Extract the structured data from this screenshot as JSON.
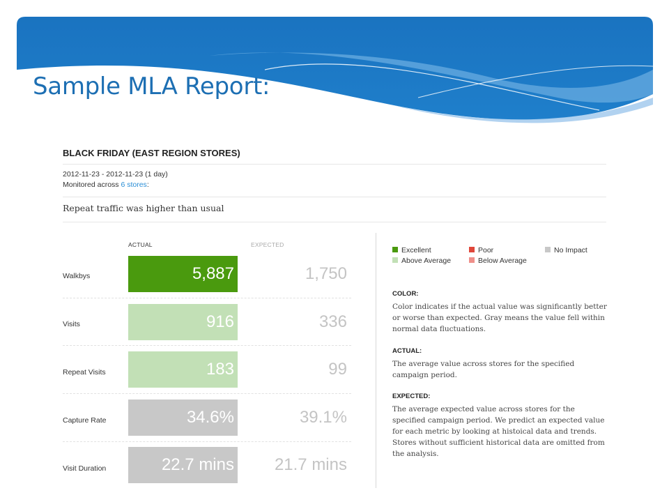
{
  "slide": {
    "title": "Sample MLA Report:",
    "colors": {
      "banner_dark": "#1a73c0",
      "banner_light": "#6aaee0",
      "title": "#1d6fb3"
    }
  },
  "report": {
    "title": "BLACK FRIDAY (EAST REGION STORES)",
    "date_range": "2012-11-23 - 2012-11-23 (1 day)",
    "monitored_prefix": "Monitored across ",
    "monitored_link": "6 stores",
    "monitored_suffix": ":",
    "headline": "Repeat traffic was higher than usual",
    "column_actual": "ACTUAL",
    "column_expected": "EXPECTED",
    "metrics": [
      {
        "label": "Walkbys",
        "actual": "5,887",
        "expected": "1,750",
        "status": "Excellent"
      },
      {
        "label": "Visits",
        "actual": "916",
        "expected": "336",
        "status": "Above Average"
      },
      {
        "label": "Repeat Visits",
        "actual": "183",
        "expected": "99",
        "status": "Above Average"
      },
      {
        "label": "Capture Rate",
        "actual": "34.6%",
        "expected": "39.1%",
        "status": "No Impact"
      },
      {
        "label": "Visit Duration",
        "actual": "22.7 mins",
        "expected": "21.7 mins",
        "status": "No Impact"
      }
    ],
    "legend": [
      {
        "label": "Excellent",
        "color": "#4a9a0e"
      },
      {
        "label": "Above Average",
        "color": "#c2e0b6"
      },
      {
        "label": "Poor",
        "color": "#e0463a"
      },
      {
        "label": "Below Average",
        "color": "#ef8f8a"
      },
      {
        "label": "No Impact",
        "color": "#c8c8c8"
      }
    ],
    "explanations": [
      {
        "heading": "COLOR:",
        "text": "Color indicates if the actual value was significantly better or worse than expected. Gray means the value fell within normal data fluctuations."
      },
      {
        "heading": "ACTUAL:",
        "text": "The average value across stores for the specified campaign period."
      },
      {
        "heading": "EXPECTED:",
        "text": "The average expected value across stores for the specified campaign period. We predict an expected value for each metric by looking at histoical data and trends. Stores without sufficient historical data are omitted from the analysis."
      }
    ]
  }
}
